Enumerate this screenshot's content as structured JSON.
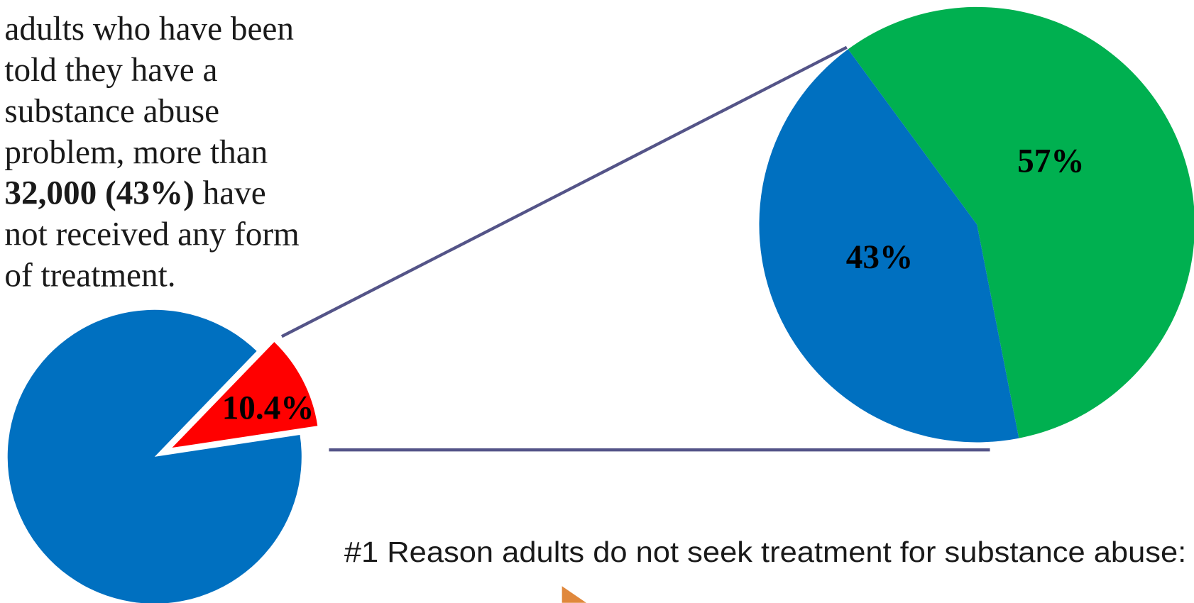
{
  "text": {
    "lines": [
      [
        {
          "text": "adults who have been",
          "bold": false
        }
      ],
      [
        {
          "text": "told they have a",
          "bold": false
        }
      ],
      [
        {
          "text": "substance abuse",
          "bold": false
        }
      ],
      [
        {
          "text": "problem, more than",
          "bold": false
        }
      ],
      [
        {
          "text": "32,000 (43%)",
          "bold": true
        },
        {
          "text": " have",
          "bold": false
        }
      ],
      [
        {
          "text": "not received any form",
          "bold": false
        }
      ],
      [
        {
          "text": "of treatment.",
          "bold": false
        }
      ]
    ],
    "subtitle": "#1 Reason adults do not seek treatment for substance abuse:"
  },
  "chart_data": [
    {
      "type": "pie",
      "values": [
        10.4,
        89.6
      ],
      "value_labels": [
        "10.4%",
        null
      ],
      "colors": [
        "#ff0000",
        "#0070c0"
      ]
    },
    {
      "type": "pie",
      "values": [
        57,
        43
      ],
      "value_labels": [
        "57%",
        "43%"
      ],
      "colors": [
        "#00b050",
        "#0070c0"
      ]
    }
  ]
}
